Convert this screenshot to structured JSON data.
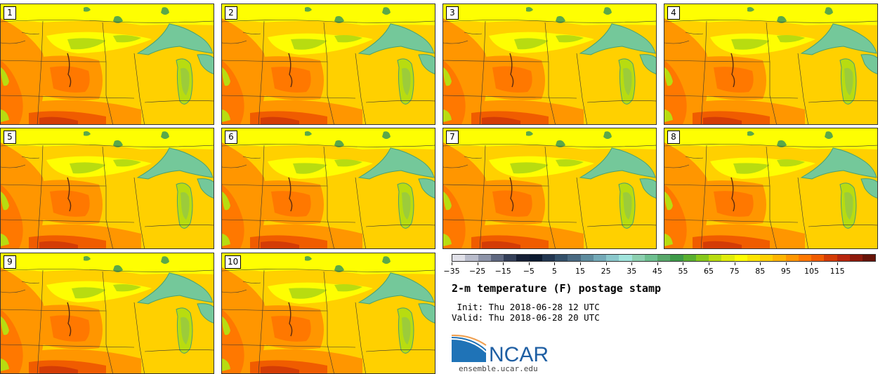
{
  "panels": [
    {
      "label": "1"
    },
    {
      "label": "2"
    },
    {
      "label": "3"
    },
    {
      "label": "4"
    },
    {
      "label": "5"
    },
    {
      "label": "6"
    },
    {
      "label": "7"
    },
    {
      "label": "8"
    },
    {
      "label": "9"
    },
    {
      "label": "10"
    }
  ],
  "colorbar": {
    "colors": [
      "#e0e0e8",
      "#b9bccb",
      "#8e94a8",
      "#5f6880",
      "#343f58",
      "#161f35",
      "#0c1a30",
      "#223650",
      "#34506a",
      "#4a6a82",
      "#5e8c9e",
      "#74aab8",
      "#8ac8cc",
      "#a0e4dc",
      "#8cd0b0",
      "#6ec090",
      "#58a86a",
      "#3e9a48",
      "#5ab030",
      "#86c81c",
      "#b8dc10",
      "#e0ec0c",
      "#fefe02",
      "#fee400",
      "#ffd000",
      "#ffb400",
      "#ff9600",
      "#ff7800",
      "#f05c00",
      "#d43c06",
      "#b8260e",
      "#8e1a0c",
      "#661408"
    ],
    "ticks": [
      "−35",
      "−25",
      "−15",
      "−5",
      "5",
      "15",
      "25",
      "35",
      "45",
      "55",
      "65",
      "75",
      "85",
      "95",
      "105",
      "115"
    ]
  },
  "title": "2-m temperature (F) postage stamp",
  "init": " Init: Thu 2018-06-28 12 UTC",
  "valid": "Valid: Thu 2018-06-28 20 UTC",
  "logo": {
    "text": "NCAR",
    "url": "ensemble.ucar.edu",
    "color": "#1f5fa3"
  },
  "map_colors": {
    "yellow": "#fefe02",
    "gold": "#ffd000",
    "amber": "#ffb400",
    "orange": "#ff9600",
    "dark_orange": "#ff7800",
    "red_orange": "#f05c00",
    "brick": "#d43c06",
    "lime": "#b8dc10",
    "lake": "#74c89a",
    "lake_dark": "#4aa070"
  }
}
